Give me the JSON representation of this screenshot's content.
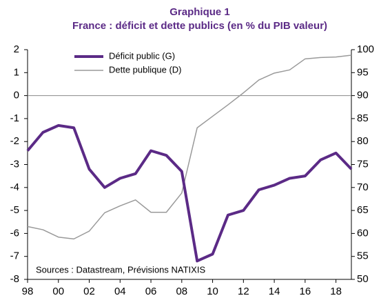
{
  "chart_data": {
    "type": "line",
    "title": "Graphique 1",
    "subtitle": "France : déficit et dette publics (en % du PIB valeur)",
    "annotation": "Sources : Datastream, Prévisions NATIXIS",
    "x": [
      1998,
      1999,
      2000,
      2001,
      2002,
      2003,
      2004,
      2005,
      2006,
      2007,
      2008,
      2009,
      2010,
      2011,
      2012,
      2013,
      2014,
      2015,
      2016,
      2017,
      2018,
      2019
    ],
    "xlim": [
      1998,
      2019
    ],
    "xticks": [
      {
        "value": 1998,
        "label": "98"
      },
      {
        "value": 2000,
        "label": "00"
      },
      {
        "value": 2002,
        "label": "02"
      },
      {
        "value": 2004,
        "label": "04"
      },
      {
        "value": 2006,
        "label": "06"
      },
      {
        "value": 2008,
        "label": "08"
      },
      {
        "value": 2010,
        "label": "10"
      },
      {
        "value": 2012,
        "label": "12"
      },
      {
        "value": 2014,
        "label": "14"
      },
      {
        "value": 2016,
        "label": "16"
      },
      {
        "value": 2018,
        "label": "18"
      }
    ],
    "ylim": [
      -8,
      2
    ],
    "yticks": [
      -8,
      -7,
      -6,
      -5,
      -4,
      -3,
      -2,
      -1,
      0,
      1,
      2
    ],
    "y2lim": [
      50,
      100
    ],
    "y2ticks": [
      50,
      55,
      60,
      65,
      70,
      75,
      80,
      85,
      90,
      95,
      100
    ],
    "series": [
      {
        "name": "Déficit public (G)",
        "color": "#5b2a86",
        "axis": "y",
        "values": [
          -2.4,
          -1.6,
          -1.3,
          -1.4,
          -3.2,
          -4.0,
          -3.6,
          -3.4,
          -2.4,
          -2.6,
          -3.3,
          -7.2,
          -6.9,
          -5.2,
          -5.0,
          -4.1,
          -3.9,
          -3.6,
          -3.5,
          -2.8,
          -2.5,
          -3.2
        ]
      },
      {
        "name": "Dette publique (D)",
        "color": "#999999",
        "axis": "y2",
        "values": [
          61.5,
          60.8,
          59.2,
          58.8,
          60.5,
          64.5,
          66,
          67.3,
          64.6,
          64.6,
          68.8,
          83,
          85.5,
          88,
          90.6,
          93.4,
          94.9,
          95.6,
          98,
          98.3,
          98.4,
          98.8
        ]
      }
    ]
  }
}
